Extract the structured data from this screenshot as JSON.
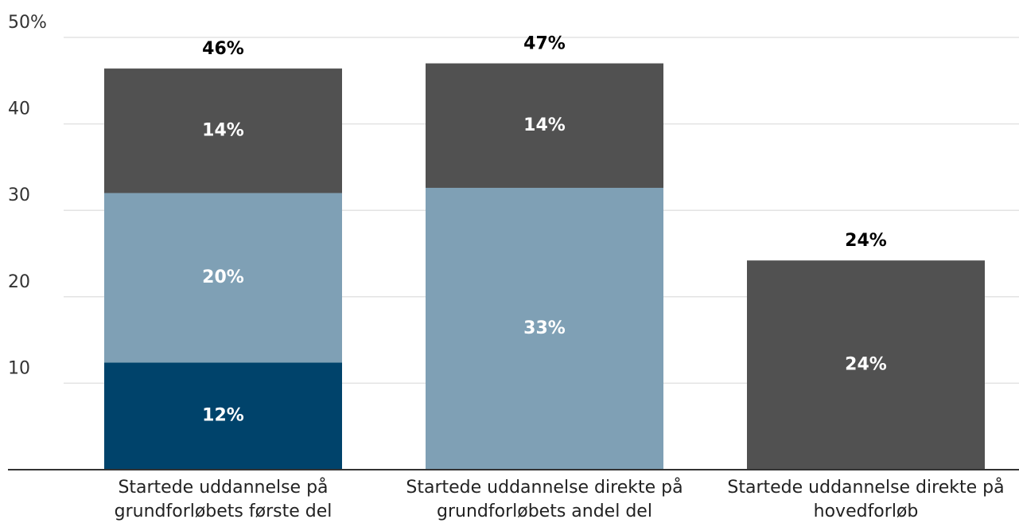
{
  "chart_data": {
    "type": "stacked_bar",
    "categories": [
      "Startede uddannelse på grundforløbets første del",
      "Startede uddannelse direkte på grundforløbets andel del",
      "Startede uddannelse direkte på hovedforløb"
    ],
    "series": [
      {
        "color": "#00436b",
        "values": [
          12.4,
          null,
          null
        ],
        "value_labels": [
          "12%",
          null,
          null
        ]
      },
      {
        "color": "#7fa0b5",
        "values": [
          19.6,
          32.6,
          null
        ],
        "value_labels": [
          "20%",
          "33%",
          null
        ]
      },
      {
        "color": "#515151",
        "values": [
          14.4,
          14.4,
          24.2
        ],
        "value_labels": [
          "14%",
          "14%",
          "24%"
        ]
      }
    ],
    "totals": [
      46.4,
      47,
      24.2
    ],
    "total_labels": [
      "46%",
      "47%",
      "24%"
    ],
    "ylim": [
      0,
      50
    ],
    "yticks": [
      10,
      20,
      30,
      40,
      {
        "value": 50,
        "label": "50%"
      }
    ],
    "grid": true
  }
}
